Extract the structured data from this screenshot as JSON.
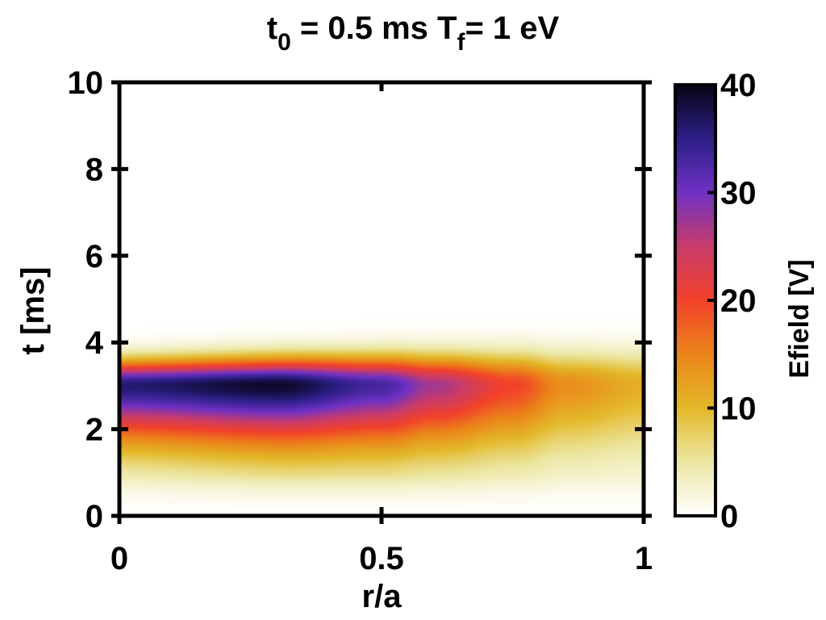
{
  "chart_data": {
    "type": "heatmap",
    "title": {
      "t_main": "t",
      "t_sub": "0",
      "t_rest": " = 0.5 ms  T",
      "T_sub": "f",
      "T_rest": "= 1 eV"
    },
    "xlabel": "r/a",
    "ylabel": "t [ms]",
    "xlim": [
      0,
      1
    ],
    "ylim": [
      0,
      10
    ],
    "xticks": [
      0,
      0.5,
      1
    ],
    "xtick_labels": [
      "0",
      "0.5",
      "1"
    ],
    "yticks": [
      0,
      2,
      4,
      6,
      8,
      10
    ],
    "ytick_labels": [
      "0",
      "2",
      "4",
      "6",
      "8",
      "10"
    ],
    "colorbar": {
      "label": "Efield [V]",
      "range": [
        0,
        40
      ],
      "ticks": [
        0,
        10,
        20,
        30,
        40
      ],
      "tick_labels": [
        "0",
        "10",
        "20",
        "30",
        "40"
      ],
      "colormap": [
        {
          "value": 0,
          "color": "#ffffff"
        },
        {
          "value": 5,
          "color": "#ece7a3"
        },
        {
          "value": 10,
          "color": "#e3b828"
        },
        {
          "value": 15,
          "color": "#eb8419"
        },
        {
          "value": 20,
          "color": "#f2412a"
        },
        {
          "value": 25,
          "color": "#c83c6a"
        },
        {
          "value": 30,
          "color": "#6f31c4"
        },
        {
          "value": 35,
          "color": "#2c1f86"
        },
        {
          "value": 40,
          "color": "#050414"
        }
      ]
    },
    "field_model": {
      "peak_time_ms": 3.0,
      "core_points": [
        {
          "r": 0.0,
          "efield": 36
        },
        {
          "r": 0.3,
          "efield": 39
        },
        {
          "r": 0.5,
          "efield": 33
        },
        {
          "r": 0.6,
          "efield": 27
        },
        {
          "r": 0.75,
          "efield": 20
        },
        {
          "r": 0.85,
          "efield": 14
        },
        {
          "r": 1.0,
          "efield": 11
        }
      ],
      "upper_decay_ms": 0.55,
      "lower_decay_ms": 1.3,
      "floor_efield": 0,
      "floor_end_ms": 0.9
    }
  }
}
